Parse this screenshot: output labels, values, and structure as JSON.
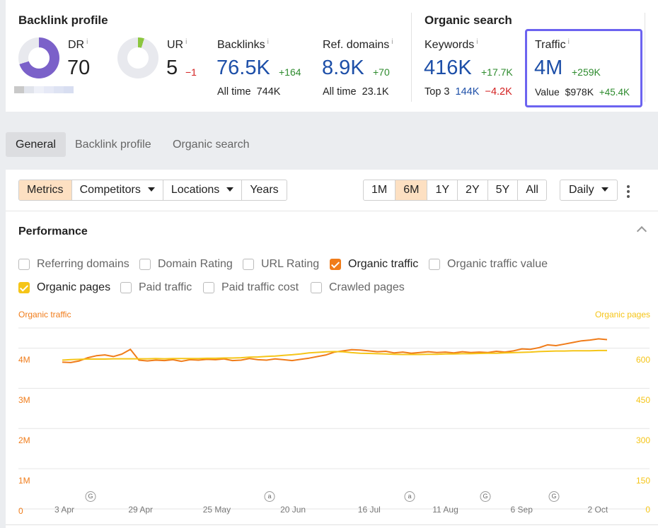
{
  "backlink_profile": {
    "title": "Backlink profile",
    "dr": {
      "label": "DR",
      "info": "i",
      "value": "70",
      "fill_fraction": 0.7
    },
    "ur": {
      "label": "UR",
      "info": "i",
      "value": "5",
      "delta": "−1",
      "fill_fraction": 0.05
    },
    "backlinks": {
      "label": "Backlinks",
      "info": "i",
      "value": "76.5K",
      "delta": "+164",
      "alltime_label": "All time",
      "alltime_value": "744K"
    },
    "ref_domains": {
      "label": "Ref. domains",
      "info": "i",
      "value": "8.9K",
      "delta": "+70",
      "alltime_label": "All time",
      "alltime_value": "23.1K"
    }
  },
  "organic_search": {
    "title": "Organic search",
    "keywords": {
      "label": "Keywords",
      "info": "i",
      "value": "416K",
      "delta": "+17.7K",
      "top3_label": "Top 3",
      "top3_value": "144K",
      "top3_delta": "−4.2K"
    },
    "traffic": {
      "label": "Traffic",
      "info": "i",
      "value": "4M",
      "delta": "+259K",
      "value_label": "Value",
      "value_amount": "$978K",
      "value_delta": "+45.4K"
    }
  },
  "tabs": [
    {
      "label": "General",
      "active": true
    },
    {
      "label": "Backlink profile",
      "active": false
    },
    {
      "label": "Organic search",
      "active": false
    }
  ],
  "toolbar": {
    "metrics": "Metrics",
    "competitors": "Competitors",
    "locations": "Locations",
    "years": "Years",
    "ranges": [
      "1M",
      "6M",
      "1Y",
      "2Y",
      "5Y",
      "All"
    ],
    "active_range": "6M",
    "interval": "Daily"
  },
  "performance": {
    "title": "Performance",
    "checkboxes_row1": [
      {
        "label": "Referring domains",
        "checked": false
      },
      {
        "label": "Domain Rating",
        "checked": false
      },
      {
        "label": "URL Rating",
        "checked": false
      },
      {
        "label": "Organic traffic",
        "checked": true,
        "color": "#f07c1a"
      },
      {
        "label": "Organic traffic value",
        "checked": false
      }
    ],
    "checkboxes_row2": [
      {
        "label": "Organic pages",
        "checked": true,
        "color": "#f5c518"
      },
      {
        "label": "Paid traffic",
        "checked": false
      },
      {
        "label": "Paid traffic cost",
        "checked": false
      },
      {
        "label": "Crawled pages",
        "checked": false
      }
    ]
  },
  "colors": {
    "organic_traffic": "#f07c1a",
    "organic_pages": "#f5c518",
    "dr_donut": "#7b61c9",
    "ur_donut": "#8cc63f",
    "highlight": "#6c63f0"
  },
  "chart_data": {
    "type": "line",
    "left_axis": {
      "title": "Organic traffic",
      "ticks": [
        "0",
        "1M",
        "2M",
        "3M",
        "4M"
      ],
      "range": [
        0,
        4500000
      ]
    },
    "right_axis": {
      "title": "Organic pages",
      "ticks": [
        "0",
        "150",
        "300",
        "450",
        "600"
      ],
      "range": [
        0,
        675
      ]
    },
    "x_ticks": [
      "3 Apr",
      "29 Apr",
      "25 May",
      "20 Jun",
      "16 Jul",
      "11 Aug",
      "6 Sep",
      "2 Oct"
    ],
    "annotations": [
      {
        "symbol": "G",
        "near": "3 Apr"
      },
      {
        "symbol": "a",
        "near": "20 Jun"
      },
      {
        "symbol": "a",
        "near": "16 Jul"
      },
      {
        "symbol": "G",
        "near": "11 Aug"
      },
      {
        "symbol": "G",
        "near": "6 Sep"
      }
    ],
    "grid": true,
    "series": [
      {
        "name": "Organic traffic",
        "axis": "left",
        "values": [
          3650000,
          3640000,
          3680000,
          3760000,
          3810000,
          3830000,
          3790000,
          3850000,
          3970000,
          3700000,
          3680000,
          3700000,
          3690000,
          3710000,
          3670000,
          3710000,
          3700000,
          3720000,
          3710000,
          3730000,
          3690000,
          3700000,
          3740000,
          3710000,
          3700000,
          3730000,
          3710000,
          3690000,
          3720000,
          3750000,
          3790000,
          3830000,
          3900000,
          3930000,
          3960000,
          3950000,
          3930000,
          3910000,
          3920000,
          3880000,
          3900000,
          3870000,
          3890000,
          3910000,
          3890000,
          3900000,
          3880000,
          3910000,
          3890000,
          3900000,
          3890000,
          3920000,
          3900000,
          3930000,
          3980000,
          3970000,
          4010000,
          4080000,
          4060000,
          4100000,
          4140000,
          4180000,
          4200000,
          4230000,
          4210000
        ]
      },
      {
        "name": "Organic pages",
        "axis": "right",
        "values": [
          555,
          557,
          558,
          559,
          559,
          559,
          560,
          560,
          560,
          560,
          560,
          561,
          560,
          561,
          561,
          561,
          561,
          562,
          562,
          563,
          563,
          564,
          566,
          567,
          569,
          570,
          573,
          575,
          578,
          582,
          584,
          586,
          587,
          586,
          583,
          581,
          580,
          579,
          578,
          577,
          576,
          576,
          576,
          577,
          577,
          578,
          578,
          579,
          579,
          580,
          581,
          581,
          582,
          583,
          584,
          585,
          587,
          588,
          589,
          589,
          590,
          590,
          590,
          591,
          591
        ]
      }
    ]
  }
}
